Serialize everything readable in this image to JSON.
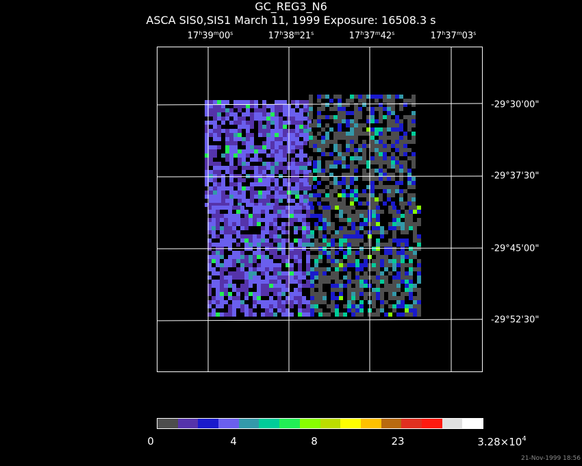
{
  "title": "GC_REG3_N6",
  "subtitle": "ASCA SIS0,SIS1 March 11, 1999 Exposure: 16508.3 s",
  "ra_labels": [
    {
      "h": "17",
      "m": "39",
      "s": "00"
    },
    {
      "h": "17",
      "m": "38",
      "s": "21"
    },
    {
      "h": "17",
      "m": "37",
      "s": "42"
    },
    {
      "h": "17",
      "m": "37",
      "s": "03"
    }
  ],
  "dec_labels": [
    {
      "d": "-29",
      "am": "30",
      "as": "00"
    },
    {
      "d": "-29",
      "am": "37",
      "as": "30"
    },
    {
      "d": "-29",
      "am": "45",
      "as": "00"
    },
    {
      "d": "-29",
      "am": "52",
      "as": "30"
    }
  ],
  "colorbar": {
    "colors": [
      "#4d4d4d",
      "#5533aa",
      "#1a1acc",
      "#6a5fee",
      "#3399aa",
      "#00cc99",
      "#22ee55",
      "#88ff00",
      "#bbdd00",
      "#ffff00",
      "#ffc000",
      "#b86a10",
      "#e03020",
      "#ff1a10",
      "#e0e0e0",
      "#ffffff"
    ],
    "tick_labels": [
      "0",
      "4",
      "8",
      "23"
    ],
    "max_label_mantissa": "3.28×10",
    "max_label_exponent": "4"
  },
  "timestamp": "21-Nov-1999 18:56"
}
